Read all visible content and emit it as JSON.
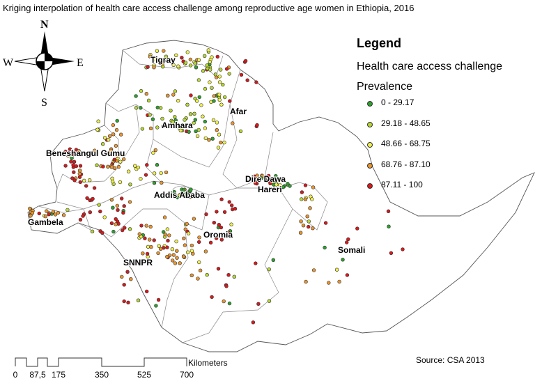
{
  "title": "Kriging interpolation of health care access challenge among reproductive age women in Ethiopia, 2016",
  "compass": {
    "north": "N",
    "south": "S",
    "east": "E",
    "west": "W"
  },
  "legend": {
    "title": "Legend",
    "subtitle": "Health care access challenge",
    "subtitle2": "Prevalence",
    "items": [
      {
        "label": "0 - 29.17",
        "color": "#2ea02e"
      },
      {
        "label": "29.18 - 48.65",
        "color": "#b7d634"
      },
      {
        "label": "48.66 - 68.75",
        "color": "#f0f04a"
      },
      {
        "label": "68.76 - 87.10",
        "color": "#e8952e"
      },
      {
        "label": "87.11 - 100",
        "color": "#d7191c"
      }
    ]
  },
  "regions": [
    {
      "name": "Tigray"
    },
    {
      "name": "Afar"
    },
    {
      "name": "Amhara"
    },
    {
      "name": "Beneshangul Gumu"
    },
    {
      "name": "Dire Dawa"
    },
    {
      "name": "Hareri"
    },
    {
      "name": "Addis Ababa"
    },
    {
      "name": "Gambela"
    },
    {
      "name": "Oromia"
    },
    {
      "name": "Somali"
    },
    {
      "name": "SNNPR"
    }
  ],
  "scale_bar": {
    "unit": "Kilometers",
    "ticks": [
      "0",
      "87,5",
      "175",
      "350",
      "525",
      "700"
    ]
  },
  "source": "Source: CSA 2013"
}
